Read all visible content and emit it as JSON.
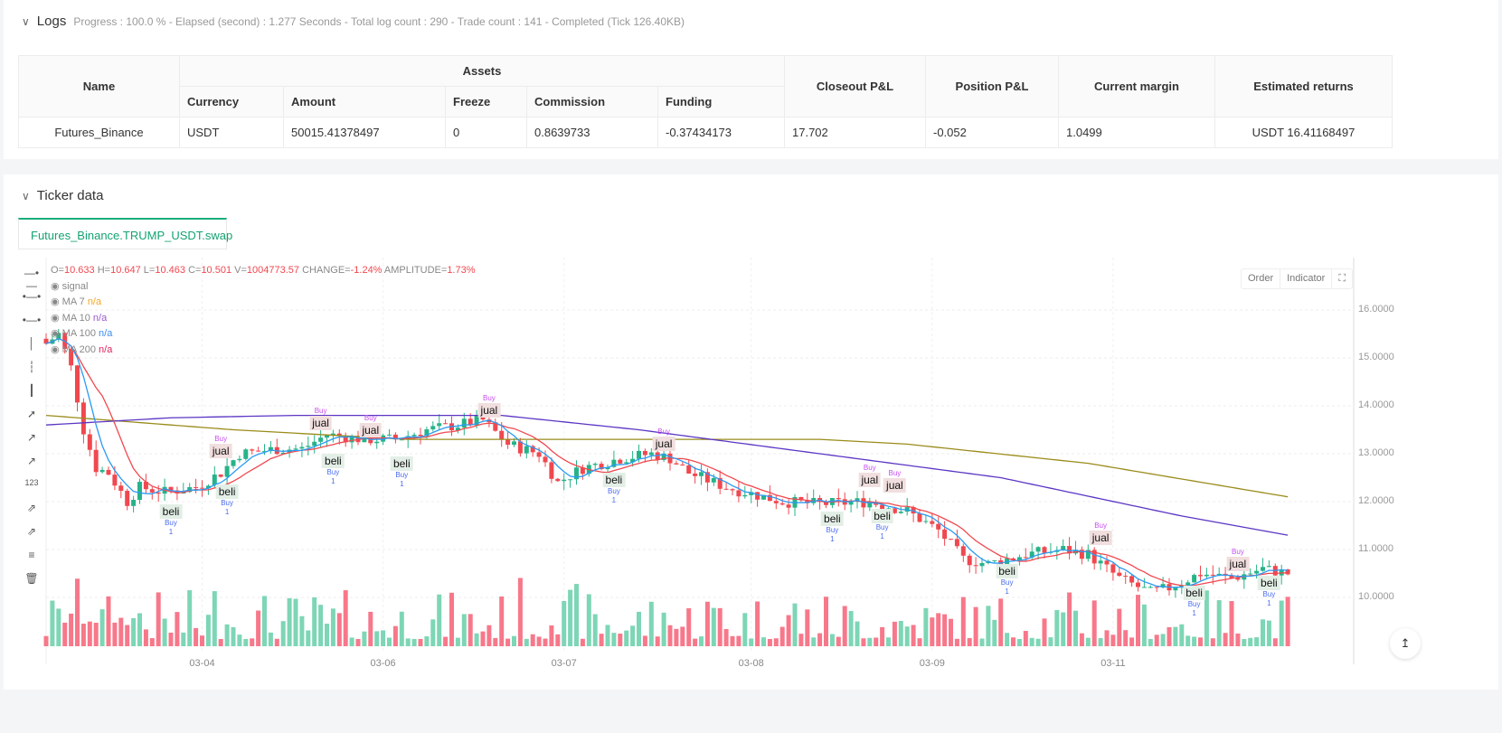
{
  "logs": {
    "title": "Logs",
    "summary": "Progress : 100.0 % - Elapsed (second) : 1.277  Seconds - Total log count : 290 - Trade count : 141 - Completed (Tick 126.40KB)"
  },
  "table": {
    "assets_header": "Assets",
    "headers": {
      "name": "Name",
      "currency": "Currency",
      "amount": "Amount",
      "freeze": "Freeze",
      "commission": "Commission",
      "funding": "Funding",
      "closeout": "Closeout P&L",
      "position": "Position P&L",
      "margin": "Current margin",
      "returns": "Estimated returns"
    },
    "row": {
      "name": "Futures_Binance",
      "currency": "USDT",
      "amount": "50015.41378497",
      "freeze": "0",
      "commission": "0.8639733",
      "funding": "-0.37434173",
      "closeout": "17.702",
      "position": "-0.052",
      "margin": "1.0499",
      "returns": "USDT 16.41168497"
    }
  },
  "ticker": {
    "title": "Ticker data",
    "tab": "Futures_Binance.TRUMP_USDT.swap",
    "ohlc": {
      "o_label": "O=",
      "o": "10.633",
      "h_label": "H=",
      "h": "10.647",
      "l_label": "L=",
      "l": "10.463",
      "c_label": "C=",
      "c": "10.501",
      "v_label": "V=",
      "v": "1004773.57",
      "chg_label": "CHANGE=",
      "chg": "-1.24%",
      "amp_label": "AMPLITUDE=",
      "amp": "1.73%"
    },
    "indicators": [
      {
        "name": "signal",
        "value": ""
      },
      {
        "name": "MA 7",
        "value": "n/a",
        "color": "#f5a623"
      },
      {
        "name": "MA 10",
        "value": "n/a",
        "color": "#9b59d0"
      },
      {
        "name": "MA 100",
        "value": "n/a",
        "color": "#3d8bf0"
      },
      {
        "name": "MA 200",
        "value": "n/a",
        "color": "#e0245e"
      }
    ],
    "buttons": {
      "order": "Order",
      "indicator": "Indicator"
    }
  },
  "chart_data": {
    "type": "candlestick",
    "ylim": [
      9.15,
      16.7
    ],
    "y_ticks": [
      "16.0000",
      "15.0000",
      "14.0000",
      "13.0000",
      "12.0000",
      "11.0000",
      "10.0000"
    ],
    "y_tick_values": [
      16,
      15,
      14,
      13,
      12,
      11,
      10
    ],
    "x_ticks": [
      {
        "label": "03-04",
        "bar": 25
      },
      {
        "label": "03-06",
        "bar": 54
      },
      {
        "label": "03-07",
        "bar": 83
      },
      {
        "label": "03-08",
        "bar": 113
      },
      {
        "label": "03-09",
        "bar": 142
      },
      {
        "label": "03-11",
        "bar": 171
      }
    ],
    "bars": 200,
    "close_keypoints": [
      [
        0,
        15.3
      ],
      [
        2,
        15.5
      ],
      [
        4,
        14.8
      ],
      [
        6,
        13.5
      ],
      [
        8,
        12.7
      ],
      [
        10,
        12.6
      ],
      [
        13,
        12.0
      ],
      [
        15,
        12.3
      ],
      [
        19,
        12.2
      ],
      [
        24,
        12.3
      ],
      [
        28,
        12.6
      ],
      [
        31,
        13.0
      ],
      [
        37,
        13.1
      ],
      [
        41,
        13.1
      ],
      [
        45,
        13.4
      ],
      [
        51,
        13.3
      ],
      [
        56,
        13.3
      ],
      [
        61,
        13.5
      ],
      [
        66,
        13.6
      ],
      [
        70,
        13.7
      ],
      [
        74,
        13.2
      ],
      [
        79,
        13.0
      ],
      [
        82,
        12.4
      ],
      [
        86,
        12.7
      ],
      [
        92,
        12.9
      ],
      [
        97,
        13.0
      ],
      [
        100,
        12.9
      ],
      [
        103,
        12.6
      ],
      [
        109,
        12.3
      ],
      [
        118,
        12.0
      ],
      [
        124,
        11.95
      ],
      [
        132,
        12.0
      ],
      [
        138,
        11.8
      ],
      [
        143,
        11.4
      ],
      [
        147,
        10.8
      ],
      [
        151,
        10.7
      ],
      [
        157,
        10.9
      ],
      [
        163,
        11.0
      ],
      [
        167,
        10.9
      ],
      [
        172,
        10.4
      ],
      [
        177,
        10.1
      ],
      [
        180,
        10.2
      ],
      [
        185,
        10.5
      ],
      [
        190,
        10.4
      ],
      [
        195,
        10.6
      ],
      [
        199,
        10.5
      ]
    ],
    "ma100_keypoints": [
      [
        0,
        13.6
      ],
      [
        20,
        13.75
      ],
      [
        40,
        13.8
      ],
      [
        73,
        13.8
      ],
      [
        95,
        13.5
      ],
      [
        124,
        13.0
      ],
      [
        153,
        12.5
      ],
      [
        182,
        11.7
      ],
      [
        199,
        11.3
      ]
    ],
    "ma200_keypoints": [
      [
        0,
        13.8
      ],
      [
        30,
        13.5
      ],
      [
        58,
        13.3
      ],
      [
        124,
        13.3
      ],
      [
        138,
        13.2
      ],
      [
        167,
        12.8
      ],
      [
        199,
        12.1
      ]
    ],
    "colors": {
      "up": "#26b389",
      "down": "#f0484f",
      "vol_up": "#7dd6b5",
      "vol_down": "#f7788a",
      "ma_fast": "#f0484f",
      "ma_slow": "#2b9af3",
      "ma100": "#5b35c4",
      "ma200": "#9a8b1a"
    },
    "signals": [
      {
        "type": "jual",
        "label": "jual",
        "tag": "Buy",
        "count": "",
        "bar": 28,
        "price": 13.2
      },
      {
        "type": "jual",
        "label": "jual",
        "tag": "Buy",
        "count": "",
        "bar": 44,
        "price": 13.8
      },
      {
        "type": "jual",
        "label": "jual",
        "tag": "Buy",
        "count": "",
        "bar": 52,
        "price": 13.65
      },
      {
        "type": "jual",
        "label": "jual",
        "tag": "Buy",
        "count": "",
        "bar": 71,
        "price": 14.05
      },
      {
        "type": "jual",
        "label": "jual",
        "tag": "Buy",
        "count": "",
        "bar": 99,
        "price": 13.35
      },
      {
        "type": "jual",
        "label": "jual",
        "tag": "Buy",
        "count": "",
        "bar": 132,
        "price": 12.6
      },
      {
        "type": "jual",
        "label": "jual",
        "tag": "Buy",
        "count": "",
        "bar": 136,
        "price": 12.5
      },
      {
        "type": "jual",
        "label": "jual",
        "tag": "Buy",
        "count": "",
        "bar": 169,
        "price": 11.4
      },
      {
        "type": "jual",
        "label": "jual",
        "tag": "Buy",
        "count": "",
        "bar": 191,
        "price": 10.85
      },
      {
        "type": "beli",
        "label": "beli",
        "tag": "Buy",
        "count": "1",
        "bar": 20,
        "price": 11.8
      },
      {
        "type": "beli",
        "label": "beli",
        "tag": "Buy",
        "count": "1",
        "bar": 29,
        "price": 12.2
      },
      {
        "type": "beli",
        "label": "beli",
        "tag": "Buy",
        "count": "1",
        "bar": 46,
        "price": 12.85
      },
      {
        "type": "beli",
        "label": "beli",
        "tag": "Buy",
        "count": "1",
        "bar": 57,
        "price": 12.8
      },
      {
        "type": "beli",
        "label": "beli",
        "tag": "Buy",
        "count": "1",
        "bar": 91,
        "price": 12.45
      },
      {
        "type": "beli",
        "label": "beli",
        "tag": "Buy",
        "count": "1",
        "bar": 126,
        "price": 11.65
      },
      {
        "type": "beli",
        "label": "beli",
        "tag": "Buy",
        "count": "1",
        "bar": 134,
        "price": 11.7
      },
      {
        "type": "beli",
        "label": "beli",
        "tag": "Buy",
        "count": "1",
        "bar": 154,
        "price": 10.55
      },
      {
        "type": "beli",
        "label": "beli",
        "tag": "Buy",
        "count": "1",
        "bar": 184,
        "price": 10.1
      },
      {
        "type": "beli",
        "label": "beli",
        "tag": "Buy",
        "count": "1",
        "bar": 196,
        "price": 10.3
      }
    ]
  }
}
